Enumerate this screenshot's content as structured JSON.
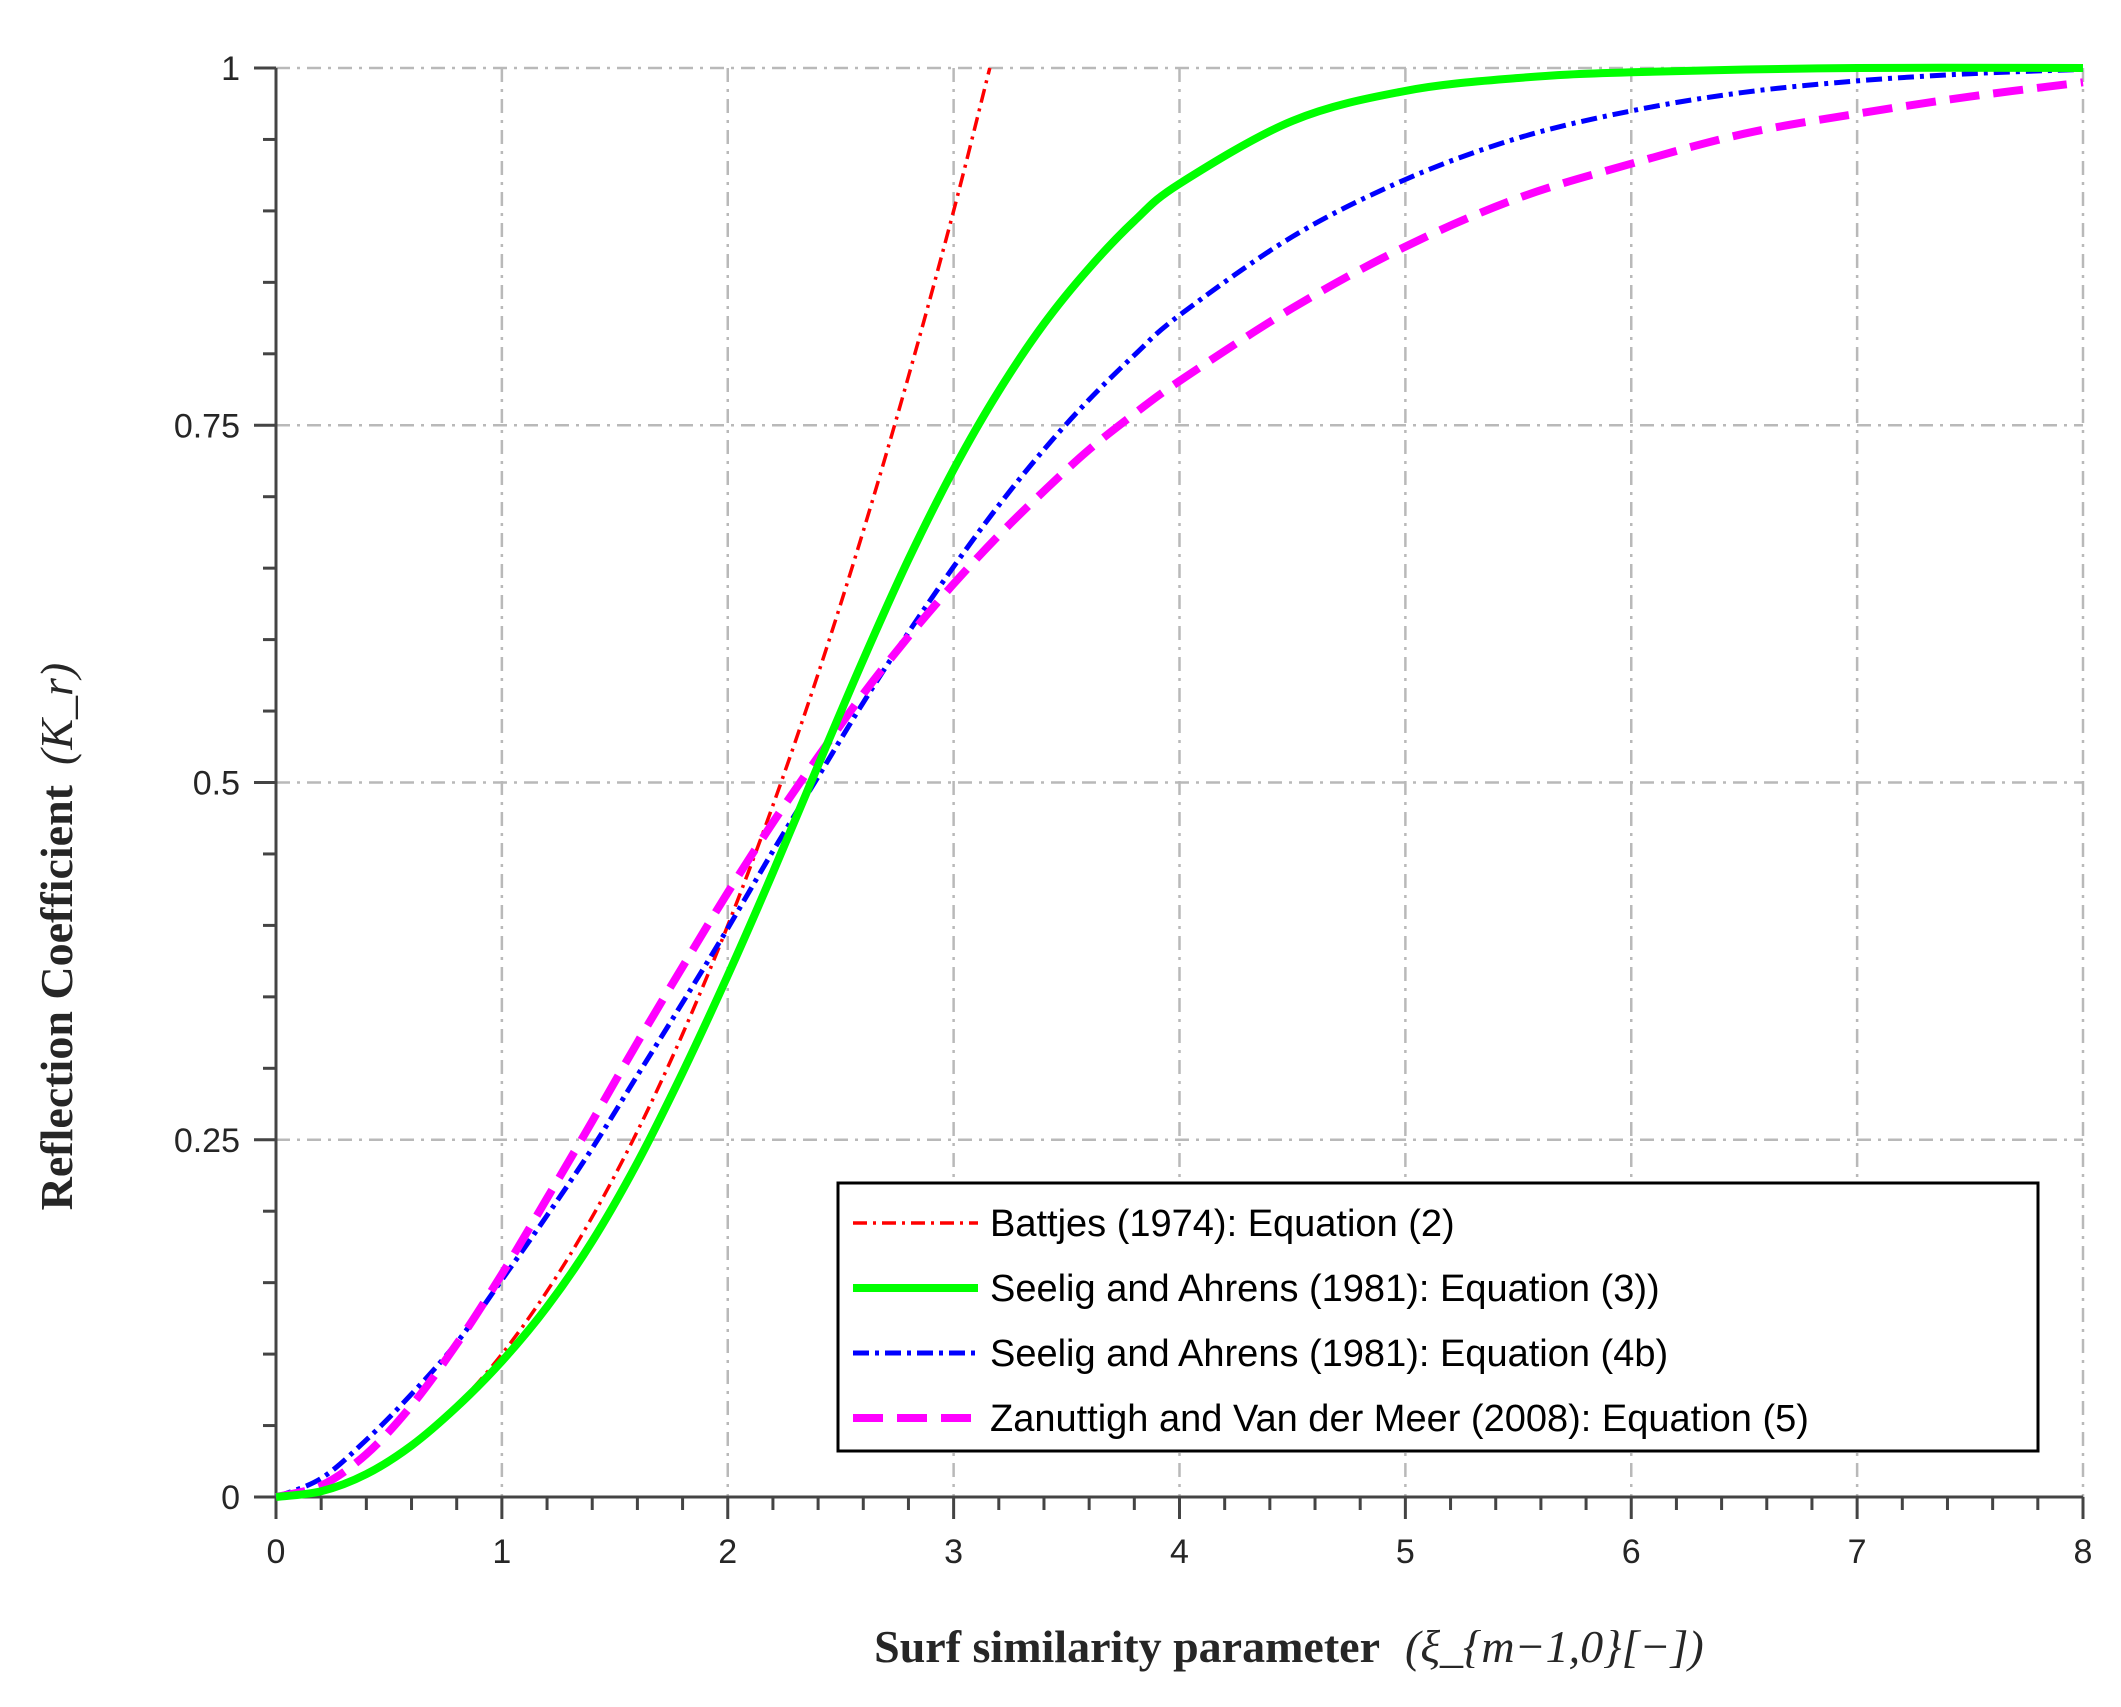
{
  "chart_data": {
    "type": "line",
    "title": "",
    "xlabel": "Surf similarity parameter",
    "xlabel_math": "(ξ_{m−1,0}[−])",
    "ylabel": "Reflection Coefficient",
    "ylabel_math": "(K_r)",
    "xlim": [
      0,
      8
    ],
    "ylim": [
      0,
      1
    ],
    "xticks": [
      0,
      1,
      2,
      3,
      4,
      5,
      6,
      7,
      8
    ],
    "xtick_labels": [
      "0",
      "1",
      "2",
      "3",
      "4",
      "5",
      "6",
      "7",
      "8"
    ],
    "yticks": [
      0,
      0.25,
      0.5,
      0.75,
      1
    ],
    "ytick_labels": [
      "0",
      "0.25",
      "0.5",
      "0.75",
      "1"
    ],
    "grid": true,
    "legend_position": "bottom-right",
    "series": [
      {
        "name": "Battjes (1974): Equation (2)",
        "color": "#ff0000",
        "style": "dash-dot",
        "x": [
          0.0,
          0.2,
          0.4,
          0.6,
          0.8,
          1.0,
          1.2,
          1.4,
          1.6,
          1.8,
          2.0,
          2.2,
          2.4,
          2.6,
          2.8,
          3.0,
          3.16
        ],
        "y": [
          0.0,
          0.004,
          0.016,
          0.036,
          0.064,
          0.1,
          0.144,
          0.196,
          0.256,
          0.324,
          0.4,
          0.484,
          0.576,
          0.676,
          0.784,
          0.9,
          1.0
        ]
      },
      {
        "name": "Seelig and Ahrens (1981): Equation (3))",
        "color": "#00ff00",
        "style": "solid",
        "x": [
          0.0,
          0.2,
          0.4,
          0.6,
          0.8,
          1.0,
          1.2,
          1.4,
          1.6,
          1.8,
          2.0,
          2.2,
          2.4,
          2.6,
          2.8,
          3.0,
          3.2,
          3.4,
          3.6,
          3.8,
          4.0,
          4.5,
          5.0,
          5.5,
          6.0,
          7.0,
          8.0
        ],
        "y": [
          0.0,
          0.004,
          0.016,
          0.036,
          0.063,
          0.095,
          0.133,
          0.179,
          0.234,
          0.297,
          0.365,
          0.437,
          0.512,
          0.586,
          0.656,
          0.719,
          0.774,
          0.821,
          0.86,
          0.893,
          0.919,
          0.963,
          0.984,
          0.993,
          0.997,
          1.0,
          1.0
        ]
      },
      {
        "name": "Seelig and Ahrens (1981): Equation (4b)",
        "color": "#0000ff",
        "style": "dash-dot",
        "x": [
          0.0,
          0.2,
          0.4,
          0.6,
          0.8,
          1.0,
          1.2,
          1.4,
          1.6,
          1.8,
          2.0,
          2.2,
          2.4,
          2.6,
          2.8,
          3.0,
          3.2,
          3.4,
          3.6,
          3.8,
          4.0,
          4.5,
          5.0,
          5.5,
          6.0,
          6.5,
          7.0,
          7.5,
          8.0
        ],
        "y": [
          0.0,
          0.013,
          0.04,
          0.072,
          0.108,
          0.152,
          0.197,
          0.244,
          0.295,
          0.346,
          0.398,
          0.452,
          0.504,
          0.556,
          0.605,
          0.651,
          0.694,
          0.733,
          0.768,
          0.799,
          0.827,
          0.882,
          0.922,
          0.951,
          0.97,
          0.983,
          0.991,
          0.996,
          0.999
        ]
      },
      {
        "name": "Zanuttigh and Van der Meer (2008): Equation (5)",
        "color": "#ff00ff",
        "style": "dashed",
        "x": [
          0.0,
          0.2,
          0.4,
          0.6,
          0.8,
          1.0,
          1.2,
          1.4,
          1.6,
          1.8,
          2.0,
          2.2,
          2.4,
          2.6,
          2.8,
          3.0,
          3.2,
          3.4,
          3.6,
          3.8,
          4.0,
          4.5,
          5.0,
          5.5,
          6.0,
          6.5,
          7.0,
          7.5,
          8.0
        ],
        "y": [
          0.0,
          0.008,
          0.03,
          0.064,
          0.107,
          0.156,
          0.209,
          0.263,
          0.318,
          0.371,
          0.423,
          0.472,
          0.518,
          0.562,
          0.602,
          0.639,
          0.673,
          0.704,
          0.733,
          0.758,
          0.781,
          0.832,
          0.875,
          0.909,
          0.933,
          0.954,
          0.968,
          0.98,
          0.99
        ]
      }
    ]
  }
}
